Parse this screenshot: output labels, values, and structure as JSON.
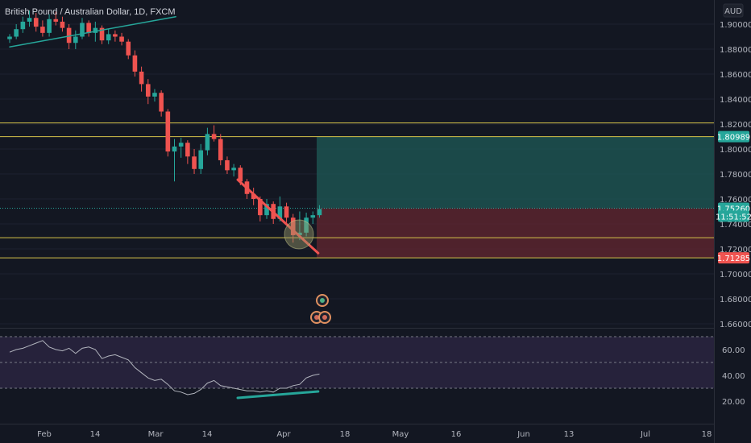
{
  "header": {
    "symbol_title": "British Pound / Australian Dollar, 1D, FXCM",
    "currency_badge": "AUD"
  },
  "colors": {
    "background": "#131722",
    "bull": "#26a69a",
    "bear": "#ef5350",
    "zone_line": "#d4c24a",
    "profit_zone": "#1f5b57",
    "loss_zone": "#5f2530",
    "rsi_line": "#b2b5be",
    "rsi_band": "#2a2440",
    "trendline_up": "#26a69a",
    "trendline_down": "#ef5350",
    "divergence": "#26a69a"
  },
  "chart_data": {
    "type": "candlestick",
    "price_axis": {
      "ticks": [
        "1.90000",
        "1.88000",
        "1.86000",
        "1.84000",
        "1.82000",
        "1.80000",
        "1.78000",
        "1.76000",
        "1.74000",
        "1.72000",
        "1.70000",
        "1.68000",
        "1.66000"
      ],
      "range": [
        1.65,
        1.912
      ]
    },
    "time_axis": {
      "ticks": [
        "Feb",
        "14",
        "Mar",
        "14",
        "Apr",
        "18",
        "May",
        "16",
        "Jun",
        "13",
        "Jul",
        "18"
      ]
    },
    "price_labels": [
      {
        "name": "target",
        "text": "1.80989",
        "value": 1.80989,
        "bg": "#26a69a"
      },
      {
        "name": "current",
        "text": "1.75260",
        "value": 1.7526,
        "bg": "#26a69a"
      },
      {
        "name": "countdown",
        "text": "11:51:52",
        "value": 1.7488,
        "bg": "#26a69a"
      },
      {
        "name": "stop",
        "text": "1.71285",
        "value": 1.71285,
        "bg": "#ef5350"
      }
    ],
    "horizontal_levels": [
      1.8209,
      1.80989,
      1.72895,
      1.71285
    ],
    "position": {
      "entry": 1.7526,
      "target": 1.80989,
      "stop": 1.71285
    },
    "candles": [
      [
        1.888,
        1.892,
        1.885,
        1.89
      ],
      [
        1.89,
        1.9,
        1.888,
        1.896
      ],
      [
        1.896,
        1.906,
        1.893,
        1.902
      ],
      [
        1.902,
        1.911,
        1.898,
        1.905
      ],
      [
        1.905,
        1.909,
        1.894,
        1.898
      ],
      [
        1.898,
        1.903,
        1.89,
        1.893
      ],
      [
        1.893,
        1.908,
        1.89,
        1.904
      ],
      [
        1.904,
        1.91,
        1.899,
        1.902
      ],
      [
        1.902,
        1.906,
        1.894,
        1.897
      ],
      [
        1.897,
        1.9,
        1.88,
        1.885
      ],
      [
        1.885,
        1.895,
        1.88,
        1.89
      ],
      [
        1.89,
        1.905,
        1.888,
        1.901
      ],
      [
        1.901,
        1.903,
        1.89,
        1.893
      ],
      [
        1.893,
        1.902,
        1.886,
        1.897
      ],
      [
        1.897,
        1.899,
        1.884,
        1.887
      ],
      [
        1.887,
        1.896,
        1.884,
        1.892
      ],
      [
        1.892,
        1.895,
        1.886,
        1.89
      ],
      [
        1.89,
        1.893,
        1.883,
        1.886
      ],
      [
        1.886,
        1.888,
        1.872,
        1.875
      ],
      [
        1.875,
        1.879,
        1.858,
        1.862
      ],
      [
        1.862,
        1.866,
        1.846,
        1.852
      ],
      [
        1.852,
        1.856,
        1.836,
        1.842
      ],
      [
        1.842,
        1.848,
        1.838,
        1.845
      ],
      [
        1.845,
        1.847,
        1.826,
        1.83
      ],
      [
        1.83,
        1.832,
        1.794,
        1.798
      ],
      [
        1.798,
        1.808,
        1.774,
        1.802
      ],
      [
        1.802,
        1.809,
        1.793,
        1.805
      ],
      [
        1.805,
        1.807,
        1.788,
        1.794
      ],
      [
        1.794,
        1.8,
        1.78,
        1.784
      ],
      [
        1.784,
        1.804,
        1.78,
        1.799
      ],
      [
        1.799,
        1.817,
        1.795,
        1.812
      ],
      [
        1.812,
        1.819,
        1.806,
        1.808
      ],
      [
        1.808,
        1.812,
        1.787,
        1.791
      ],
      [
        1.791,
        1.794,
        1.78,
        1.783
      ],
      [
        1.783,
        1.788,
        1.778,
        1.785
      ],
      [
        1.785,
        1.787,
        1.771,
        1.774
      ],
      [
        1.774,
        1.776,
        1.76,
        1.764
      ],
      [
        1.764,
        1.769,
        1.755,
        1.76
      ],
      [
        1.76,
        1.762,
        1.742,
        1.747
      ],
      [
        1.747,
        1.76,
        1.744,
        1.756
      ],
      [
        1.756,
        1.758,
        1.74,
        1.744
      ],
      [
        1.744,
        1.762,
        1.742,
        1.754
      ],
      [
        1.754,
        1.757,
        1.741,
        1.745
      ],
      [
        1.745,
        1.748,
        1.725,
        1.731
      ],
      [
        1.731,
        1.75,
        1.727,
        1.733
      ],
      [
        1.733,
        1.749,
        1.73,
        1.745
      ],
      [
        1.745,
        1.75,
        1.74,
        1.747
      ],
      [
        1.747,
        1.755,
        1.745,
        1.752
      ]
    ],
    "rsi": {
      "ticks": [
        "60.00",
        "40.00",
        "20.00"
      ],
      "range": [
        12,
        75
      ],
      "bands": [
        70,
        50,
        30
      ],
      "values": [
        58,
        60,
        61,
        63,
        65,
        67,
        62,
        60,
        59,
        61,
        57,
        61,
        62,
        60,
        53,
        55,
        56,
        54,
        52,
        46,
        42,
        38,
        36,
        37,
        33,
        28,
        27,
        25,
        26,
        29,
        34,
        36,
        32,
        31,
        30,
        29,
        28,
        28,
        27,
        28,
        27,
        30,
        30,
        32,
        33,
        38,
        40,
        41
      ]
    },
    "trendlines": [
      {
        "name": "ascending-support",
        "from": [
          0,
          1.8818
        ],
        "to": [
          25.2,
          1.906
        ]
      },
      {
        "name": "descending-lows",
        "from": [
          34.6,
          1.7754
        ],
        "to": [
          46.8,
          1.7166
        ]
      },
      {
        "name": "rsi-divergence",
        "from": [
          34.6,
          22.5
        ],
        "to": [
          46.8,
          27.5
        ]
      }
    ]
  }
}
